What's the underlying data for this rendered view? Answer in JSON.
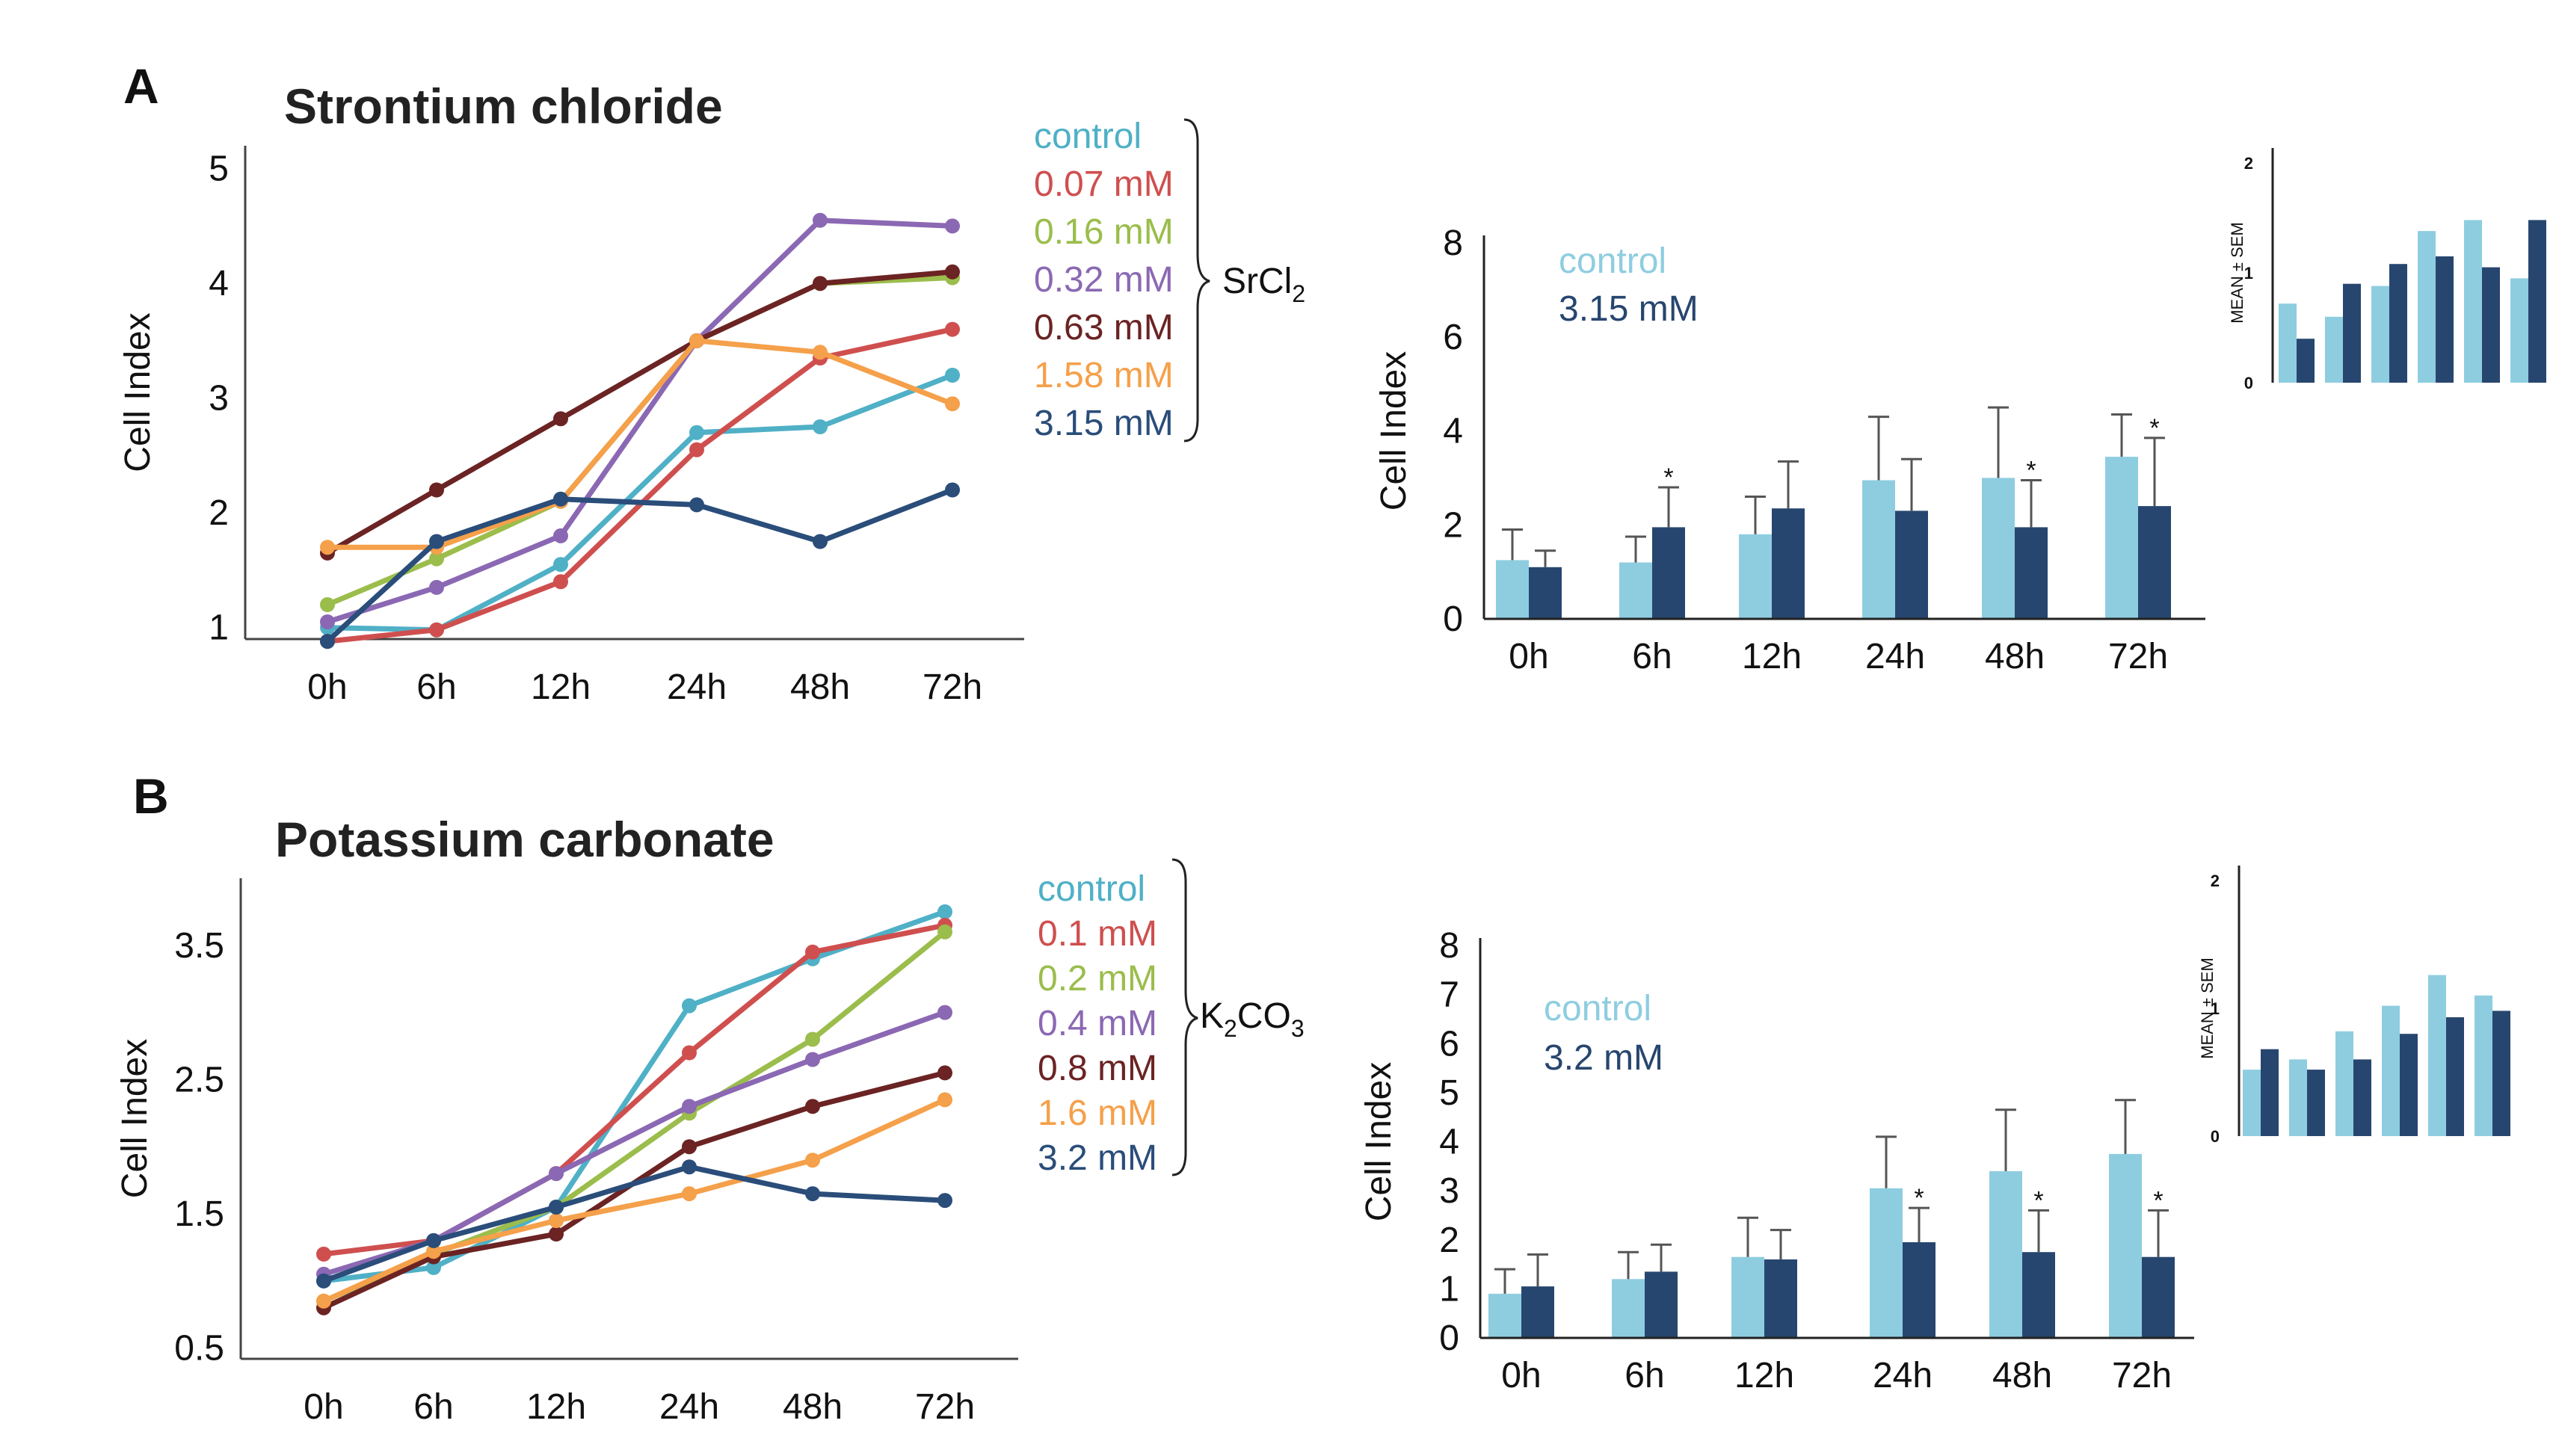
{
  "figure": {
    "panel_a_letter": "A",
    "panel_b_letter": "B",
    "chem_a": "SrCl",
    "chem_a_sub": "2",
    "chem_b_k": "K",
    "chem_b_sub1": "2",
    "chem_b_co": "CO",
    "chem_b_sub2": "3"
  },
  "chart_data": [
    {
      "id": "lineA",
      "type": "line",
      "title": "Strontium chloride",
      "ylabel": "Cell Index",
      "categories": [
        "0h",
        "6h",
        "12h",
        "24h",
        "48h",
        "72h"
      ],
      "ylim": [
        0.9,
        5.2
      ],
      "yticks": [
        "1",
        "2",
        "3",
        "4",
        "5"
      ],
      "series": [
        {
          "name": "control",
          "color": "#4fb0c6",
          "values": [
            1.0,
            0.98,
            1.55,
            2.7,
            2.75,
            3.2
          ]
        },
        {
          "name": "0.07 mM",
          "color": "#cf4f4f",
          "values": [
            0.88,
            0.98,
            1.4,
            2.55,
            3.35,
            3.6
          ]
        },
        {
          "name": "0.16 mM",
          "color": "#9bbd4c",
          "values": [
            1.2,
            1.6,
            2.1,
            3.5,
            4.0,
            4.05
          ]
        },
        {
          "name": "0.32 mM",
          "color": "#8b68b3",
          "values": [
            1.05,
            1.35,
            1.8,
            3.5,
            4.55,
            4.5
          ]
        },
        {
          "name": "0.63 mM",
          "color": "#6b2323",
          "values": [
            1.65,
            2.2,
            2.82,
            3.5,
            4.0,
            4.1
          ]
        },
        {
          "name": "1.58 mM",
          "color": "#f5a04a",
          "values": [
            1.7,
            1.7,
            2.1,
            3.5,
            3.4,
            2.95
          ]
        },
        {
          "name": "3.15 mM",
          "color": "#2a4d7a",
          "values": [
            0.88,
            1.75,
            2.12,
            2.07,
            1.75,
            2.2
          ]
        }
      ]
    },
    {
      "id": "barA",
      "type": "bar",
      "ylabel": "Cell Index",
      "categories": [
        "0h",
        "6h",
        "12h",
        "24h",
        "48h",
        "72h"
      ],
      "ylim": [
        0,
        8
      ],
      "yticks": [
        "0",
        "2",
        "4",
        "6",
        "8"
      ],
      "series": [
        {
          "name": "control",
          "color": "#8ecde0",
          "values": [
            1.25,
            1.2,
            1.8,
            2.95,
            3.0,
            3.45
          ],
          "errors": [
            0.65,
            0.55,
            0.8,
            1.35,
            1.5,
            0.9
          ]
        },
        {
          "name": "3.15 mM",
          "color": "#27466f",
          "values": [
            1.1,
            1.95,
            2.35,
            2.3,
            1.95,
            2.4
          ],
          "errors": [
            0.35,
            0.85,
            1.0,
            1.1,
            1.0,
            1.45
          ]
        }
      ],
      "significant": [
        false,
        true,
        false,
        false,
        true,
        true
      ],
      "star": "*"
    },
    {
      "id": "smallA",
      "type": "bar",
      "ylabel": "MEAN ± SEM",
      "ylim": [
        0,
        2
      ],
      "yticks": [
        "0",
        "1",
        "2"
      ],
      "series": [
        {
          "name": "control",
          "color": "#8ecde0",
          "values": [
            0.72,
            0.6,
            0.88,
            1.38,
            1.48,
            0.95
          ]
        },
        {
          "name": "3.15 mM",
          "color": "#27466f",
          "values": [
            0.4,
            0.9,
            1.08,
            1.15,
            1.05,
            1.48
          ]
        }
      ]
    },
    {
      "id": "lineB",
      "type": "line",
      "title": "Potassium carbonate",
      "ylabel": "Cell Index",
      "categories": [
        "0h",
        "6h",
        "12h",
        "24h",
        "48h",
        "72h"
      ],
      "ylim": [
        0.42,
        4.0
      ],
      "yticks": [
        "0.5",
        "1.5",
        "2.5",
        "3.5"
      ],
      "series": [
        {
          "name": "control",
          "color": "#4fb0c6",
          "values": [
            1.0,
            1.1,
            1.55,
            3.05,
            3.4,
            3.75
          ]
        },
        {
          "name": "0.1 mM",
          "color": "#cf4f4f",
          "values": [
            1.2,
            1.3,
            1.8,
            2.7,
            3.45,
            3.65
          ]
        },
        {
          "name": "0.2 mM",
          "color": "#9bbd4c",
          "values": [
            0.85,
            1.2,
            1.55,
            2.25,
            2.8,
            3.6
          ]
        },
        {
          "name": "0.4 mM",
          "color": "#8b68b3",
          "values": [
            1.05,
            1.3,
            1.8,
            2.3,
            2.65,
            3.0
          ]
        },
        {
          "name": "0.8 mM",
          "color": "#6b2323",
          "values": [
            0.8,
            1.18,
            1.35,
            2.0,
            2.3,
            2.55
          ]
        },
        {
          "name": "1.6 mM",
          "color": "#f5a04a",
          "values": [
            0.85,
            1.22,
            1.45,
            1.65,
            1.9,
            2.35
          ]
        },
        {
          "name": "3.2 mM",
          "color": "#2a4d7a",
          "values": [
            1.0,
            1.3,
            1.55,
            1.85,
            1.65,
            1.6
          ]
        }
      ]
    },
    {
      "id": "barB",
      "type": "bar",
      "ylabel": "Cell Index",
      "categories": [
        "0h",
        "6h",
        "12h",
        "24h",
        "48h",
        "72h"
      ],
      "ylim": [
        0,
        8
      ],
      "yticks": [
        "0",
        "1",
        "2",
        "3",
        "4",
        "5",
        "6",
        "7",
        "8"
      ],
      "series": [
        {
          "name": "control",
          "color": "#8ecde0",
          "values": [
            0.9,
            1.2,
            1.65,
            3.05,
            3.4,
            3.75
          ],
          "errors": [
            0.5,
            0.55,
            0.8,
            1.05,
            1.25,
            1.1
          ]
        },
        {
          "name": "3.2 mM",
          "color": "#27466f",
          "values": [
            1.05,
            1.35,
            1.6,
            1.95,
            1.75,
            1.65
          ],
          "errors": [
            0.65,
            0.55,
            0.6,
            0.7,
            0.85,
            0.95
          ]
        }
      ],
      "significant": [
        false,
        false,
        false,
        true,
        true,
        true
      ],
      "star": "*"
    },
    {
      "id": "smallB",
      "type": "bar",
      "ylabel": "MEAN ± SEM",
      "ylim": [
        0,
        2
      ],
      "yticks": [
        "0",
        "1",
        "2"
      ],
      "series": [
        {
          "name": "control",
          "color": "#8ecde0",
          "values": [
            0.52,
            0.6,
            0.82,
            1.02,
            1.26,
            1.1
          ]
        },
        {
          "name": "3.2 mM",
          "color": "#27466f",
          "values": [
            0.68,
            0.52,
            0.6,
            0.8,
            0.93,
            0.98
          ]
        }
      ]
    }
  ]
}
